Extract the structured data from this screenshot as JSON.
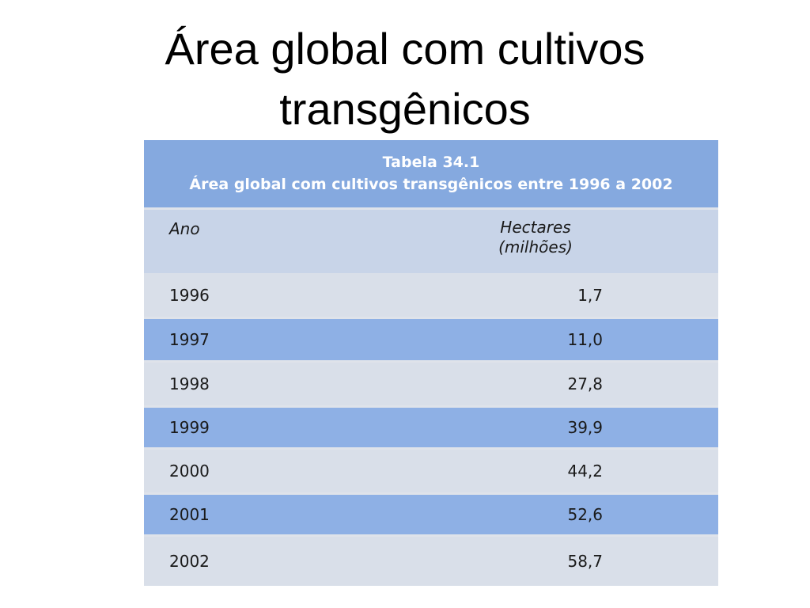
{
  "title": "Área global com cultivos transgênicos",
  "table": {
    "caption": [
      "Tabela 34.1",
      "Área global com cultivos transgênicos entre 1996 a 2002"
    ],
    "header": [
      "Ano",
      "Hectares (milhões)"
    ],
    "rows": [
      [
        "1996",
        "1,7"
      ],
      [
        "1997",
        "11,0"
      ],
      [
        "1998",
        "27,8"
      ],
      [
        "1999",
        "39,9"
      ],
      [
        "2000",
        "44,2"
      ],
      [
        "2001",
        "52,6"
      ],
      [
        "2002",
        "58,7"
      ]
    ]
  }
}
